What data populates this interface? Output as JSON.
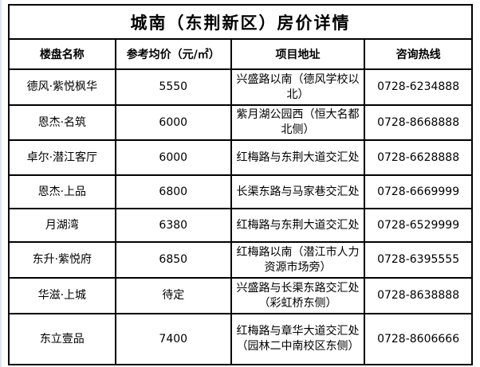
{
  "title": "城南（东荆新区）房价详情",
  "chart_data": {
    "type": "table",
    "title": "城南（东荆新区）房价详情",
    "columns": [
      "楼盘名称",
      "参考均价（元/㎡）",
      "项目地址",
      "咨询热线"
    ],
    "rows": [
      [
        "德风·紫悦枫华",
        "5550",
        "兴盛路以南（德风学校以北）",
        "0728-6234888"
      ],
      [
        "恩杰·名筑",
        "6000",
        "紫月湖公园西（恒大名都北侧）",
        "0728-8668888"
      ],
      [
        "卓尔·潜江客厅",
        "6000",
        "红梅路与东荆大道交汇处",
        "0728-6628888"
      ],
      [
        "恩杰·上品",
        "6800",
        "长渠东路与马家巷交汇处",
        "0728-6669999"
      ],
      [
        "月湖湾",
        "6380",
        "红梅路与东荆大道交汇处",
        "0728-6529999"
      ],
      [
        "东升·紫悦府",
        "6850",
        "红梅路以南（潜江市人力资源市场旁）",
        "0728-6395555"
      ],
      [
        "华滋·上城",
        "待定",
        "兴盛路与长渠东路交汇处（彩虹桥东侧）",
        "0728-8638888"
      ],
      [
        "东立壹品",
        "7400",
        "红梅路与章华大道交汇处（园林二中南校区东侧）",
        "0728-8606666"
      ]
    ]
  },
  "colors": {
    "title_background": "#F4AE7D",
    "title_text": "#FFFFFF",
    "grid_border": "#000000",
    "cell_background": "#FFFFFF",
    "body_text": "#000000"
  }
}
